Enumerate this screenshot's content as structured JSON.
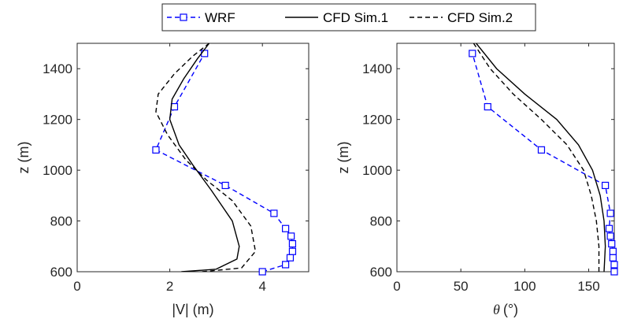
{
  "chart_data": [
    {
      "type": "line",
      "xlabel": "|V| (m)",
      "ylabel": "z (m)",
      "xlim": [
        0,
        5
      ],
      "ylim": [
        600,
        1500
      ],
      "xticks": [
        0,
        2,
        4
      ],
      "yticks": [
        600,
        800,
        1000,
        1200,
        1400
      ],
      "grid": false,
      "series": [
        {
          "name": "WRF",
          "style": "dashed-square-markers",
          "color": "#0000ff",
          "points": [
            [
              4.0,
              600
            ],
            [
              4.5,
              628
            ],
            [
              4.6,
              655
            ],
            [
              4.65,
              680
            ],
            [
              4.65,
              710
            ],
            [
              4.62,
              740
            ],
            [
              4.5,
              770
            ],
            [
              4.25,
              830
            ],
            [
              3.2,
              940
            ],
            [
              1.7,
              1080
            ],
            [
              2.1,
              1250
            ],
            [
              2.75,
              1460
            ]
          ]
        },
        {
          "name": "CFD Sim.1",
          "style": "solid",
          "color": "#000000",
          "points": [
            [
              2.25,
              600
            ],
            [
              3.0,
              610
            ],
            [
              3.45,
              650
            ],
            [
              3.5,
              700
            ],
            [
              3.35,
              800
            ],
            [
              2.9,
              920
            ],
            [
              2.5,
              1020
            ],
            [
              2.2,
              1100
            ],
            [
              2.0,
              1200
            ],
            [
              2.05,
              1280
            ],
            [
              2.3,
              1360
            ],
            [
              2.6,
              1440
            ],
            [
              2.85,
              1500
            ]
          ]
        },
        {
          "name": "CFD Sim.2",
          "style": "dashed",
          "color": "#000000",
          "points": [
            [
              2.7,
              600
            ],
            [
              3.55,
              615
            ],
            [
              3.85,
              680
            ],
            [
              3.75,
              780
            ],
            [
              3.35,
              880
            ],
            [
              2.8,
              960
            ],
            [
              2.35,
              1040
            ],
            [
              1.95,
              1140
            ],
            [
              1.7,
              1230
            ],
            [
              1.75,
              1300
            ],
            [
              2.1,
              1380
            ],
            [
              2.5,
              1450
            ],
            [
              2.85,
              1500
            ]
          ]
        }
      ]
    },
    {
      "type": "line",
      "xlabel": "(°)",
      "xlabel_symbol": "θ",
      "ylabel": "z (m)",
      "xlim": [
        0,
        170
      ],
      "ylim": [
        600,
        1500
      ],
      "xticks": [
        0,
        50,
        100,
        150
      ],
      "yticks": [
        600,
        800,
        1000,
        1200,
        1400
      ],
      "grid": false,
      "series": [
        {
          "name": "WRF",
          "style": "dashed-square-markers",
          "color": "#0000ff",
          "points": [
            [
              170,
              600
            ],
            [
              170,
              628
            ],
            [
              169,
              655
            ],
            [
              169,
              680
            ],
            [
              168,
              710
            ],
            [
              167,
              740
            ],
            [
              166,
              770
            ],
            [
              167,
              830
            ],
            [
              163,
              940
            ],
            [
              113,
              1080
            ],
            [
              71,
              1250
            ],
            [
              59,
              1460
            ]
          ]
        },
        {
          "name": "CFD Sim.1",
          "style": "solid",
          "color": "#000000",
          "points": [
            [
              162,
              600
            ],
            [
              163,
              700
            ],
            [
              162,
              800
            ],
            [
              159,
              900
            ],
            [
              153,
              1000
            ],
            [
              142,
              1100
            ],
            [
              125,
              1200
            ],
            [
              100,
              1300
            ],
            [
              78,
              1400
            ],
            [
              62,
              1500
            ]
          ]
        },
        {
          "name": "CFD Sim.2",
          "style": "dashed",
          "color": "#000000",
          "points": [
            [
              158,
              600
            ],
            [
              158,
              700
            ],
            [
              156,
              800
            ],
            [
              152,
              900
            ],
            [
              146,
              1000
            ],
            [
              133,
              1100
            ],
            [
              113,
              1200
            ],
            [
              91,
              1300
            ],
            [
              73,
              1400
            ],
            [
              60,
              1500
            ]
          ]
        }
      ]
    }
  ],
  "legend": {
    "position": "top-center",
    "entries": [
      "WRF",
      "CFD Sim.1",
      "CFD Sim.2"
    ]
  }
}
